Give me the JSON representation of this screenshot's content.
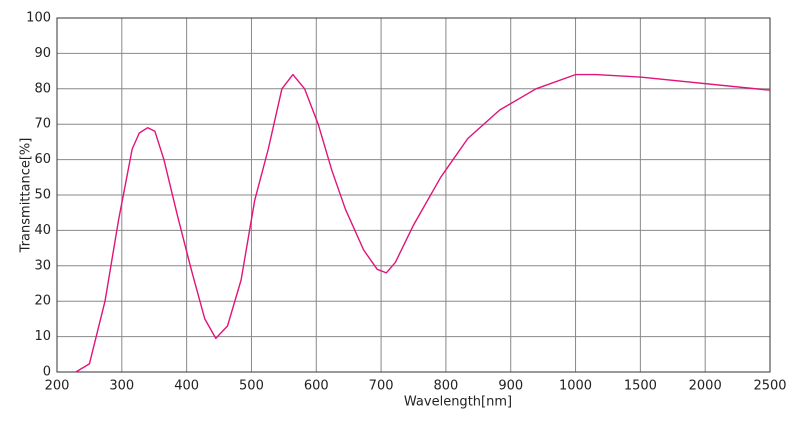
{
  "chart_data": {
    "type": "line",
    "x_label": "Wavelength[nm]",
    "y_label": "Transmittance[%]",
    "x": [
      229,
      250,
      274,
      295,
      316,
      327,
      340,
      351,
      365,
      386,
      407,
      428,
      445,
      463,
      484,
      505,
      526,
      547,
      564,
      582,
      603,
      624,
      645,
      673,
      694,
      708,
      722,
      750,
      792,
      834,
      883,
      939,
      1000,
      1154,
      1500,
      2500
    ],
    "series": [
      {
        "color": "#e0147a",
        "values": [
          0,
          2.3,
          20,
          43,
          63,
          67.5,
          69,
          68,
          60,
          44,
          29,
          15,
          9.5,
          13,
          26,
          48.5,
          63,
          80,
          84,
          80,
          70,
          57,
          46,
          34.5,
          29,
          28,
          31,
          41.5,
          55,
          66,
          74,
          80,
          84,
          84,
          83.3,
          79.6
        ]
      }
    ],
    "xlim": [
      200,
      2500
    ],
    "xticks": [
      200,
      300,
      400,
      500,
      600,
      700,
      800,
      900,
      1000,
      1500,
      2000,
      2500
    ],
    "ylim": [
      0,
      100
    ],
    "yticks": [
      0,
      10,
      20,
      30,
      40,
      50,
      60,
      70,
      80,
      90,
      100
    ],
    "grid": true
  }
}
